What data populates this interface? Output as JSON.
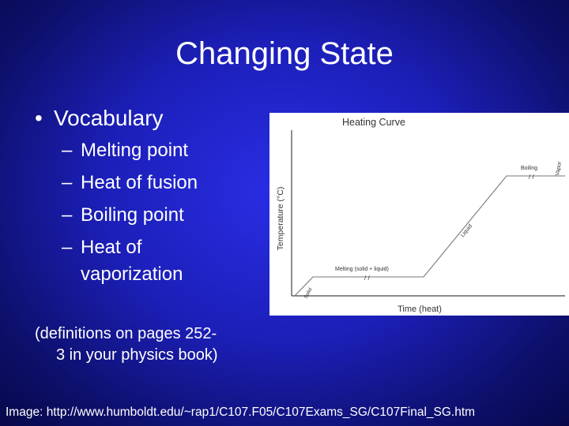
{
  "slide": {
    "title": "Changing State",
    "bullet": "Vocabulary",
    "bullet_marker": "•",
    "sub_marker": "–",
    "sub_items": [
      "Melting point",
      "Heat of fusion",
      "Boiling point",
      "Heat of",
      "vaporization"
    ],
    "definitions_line1": "(definitions on pages 252-",
    "definitions_line2": "3 in your physics book)",
    "credit": "Image: http://www.humboldt.edu/~rap1/C107.F05/C107Exams_SG/C107Final_SG.htm"
  },
  "chart_data": {
    "type": "line",
    "title": "Heating Curve",
    "xlabel": "Time (heat)",
    "ylabel": "Temperature (°C)",
    "segments": [
      {
        "label": "Solid"
      },
      {
        "label": "Melting (solid + liquid)"
      },
      {
        "label": "Liquid"
      },
      {
        "label": "Boiling"
      },
      {
        "label": "Vapor"
      }
    ]
  }
}
